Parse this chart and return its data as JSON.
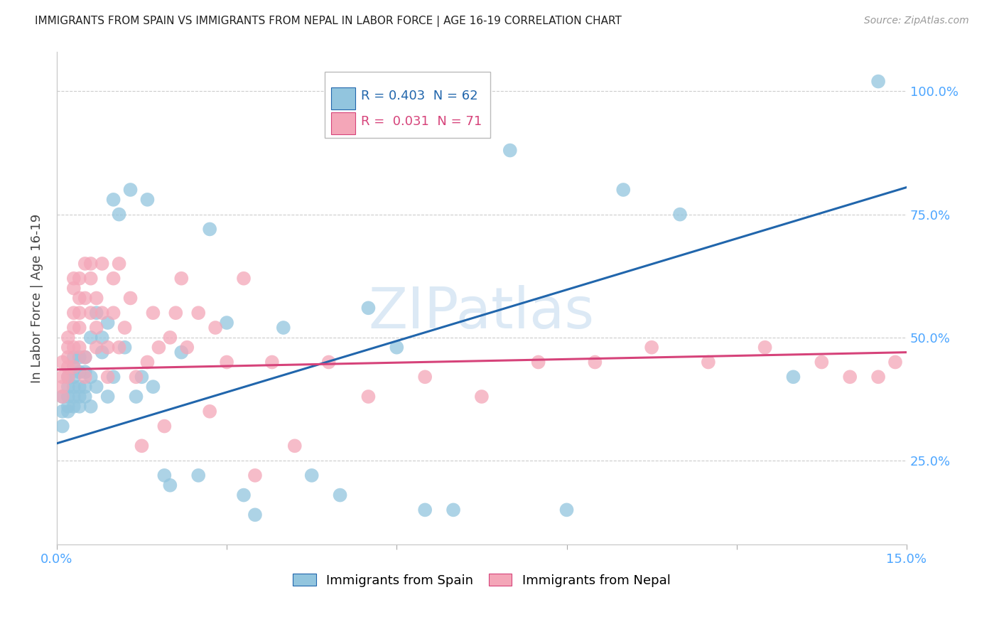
{
  "title": "IMMIGRANTS FROM SPAIN VS IMMIGRANTS FROM NEPAL IN LABOR FORCE | AGE 16-19 CORRELATION CHART",
  "source": "Source: ZipAtlas.com",
  "ylabel": "In Labor Force | Age 16-19",
  "x_min": 0.0,
  "x_max": 0.15,
  "y_min": 0.08,
  "y_max": 1.08,
  "y_ticks": [
    0.25,
    0.5,
    0.75,
    1.0
  ],
  "y_tick_labels": [
    "25.0%",
    "50.0%",
    "75.0%",
    "100.0%"
  ],
  "legend_spain_R": "0.403",
  "legend_spain_N": "62",
  "legend_nepal_R": "0.031",
  "legend_nepal_N": "71",
  "blue_color": "#92c5de",
  "blue_line_color": "#2166ac",
  "pink_color": "#f4a6b8",
  "pink_line_color": "#d6437a",
  "watermark_color": "#dce9f5",
  "grid_color": "#cccccc",
  "tick_color": "#4da6ff",
  "spain_x": [
    0.001,
    0.001,
    0.001,
    0.002,
    0.002,
    0.002,
    0.002,
    0.002,
    0.003,
    0.003,
    0.003,
    0.003,
    0.003,
    0.003,
    0.004,
    0.004,
    0.004,
    0.004,
    0.004,
    0.005,
    0.005,
    0.005,
    0.005,
    0.006,
    0.006,
    0.006,
    0.007,
    0.007,
    0.008,
    0.008,
    0.009,
    0.009,
    0.01,
    0.01,
    0.011,
    0.012,
    0.013,
    0.014,
    0.015,
    0.016,
    0.017,
    0.019,
    0.02,
    0.022,
    0.025,
    0.027,
    0.03,
    0.033,
    0.035,
    0.04,
    0.045,
    0.05,
    0.055,
    0.06,
    0.065,
    0.07,
    0.08,
    0.09,
    0.1,
    0.11,
    0.13,
    0.145
  ],
  "spain_y": [
    0.38,
    0.35,
    0.32,
    0.4,
    0.36,
    0.42,
    0.38,
    0.35,
    0.42,
    0.38,
    0.36,
    0.4,
    0.44,
    0.46,
    0.38,
    0.4,
    0.43,
    0.46,
    0.36,
    0.43,
    0.46,
    0.38,
    0.4,
    0.5,
    0.36,
    0.42,
    0.55,
    0.4,
    0.47,
    0.5,
    0.53,
    0.38,
    0.78,
    0.42,
    0.75,
    0.48,
    0.8,
    0.38,
    0.42,
    0.78,
    0.4,
    0.22,
    0.2,
    0.47,
    0.22,
    0.72,
    0.53,
    0.18,
    0.14,
    0.52,
    0.22,
    0.18,
    0.56,
    0.48,
    0.15,
    0.15,
    0.88,
    0.15,
    0.8,
    0.75,
    0.42,
    1.02
  ],
  "nepal_x": [
    0.001,
    0.001,
    0.001,
    0.001,
    0.002,
    0.002,
    0.002,
    0.002,
    0.002,
    0.003,
    0.003,
    0.003,
    0.003,
    0.003,
    0.003,
    0.004,
    0.004,
    0.004,
    0.004,
    0.004,
    0.005,
    0.005,
    0.005,
    0.005,
    0.006,
    0.006,
    0.006,
    0.007,
    0.007,
    0.007,
    0.008,
    0.008,
    0.009,
    0.009,
    0.01,
    0.01,
    0.011,
    0.011,
    0.012,
    0.013,
    0.014,
    0.015,
    0.016,
    0.017,
    0.018,
    0.019,
    0.02,
    0.021,
    0.022,
    0.023,
    0.025,
    0.027,
    0.028,
    0.03,
    0.033,
    0.035,
    0.038,
    0.042,
    0.048,
    0.055,
    0.065,
    0.075,
    0.085,
    0.095,
    0.105,
    0.115,
    0.125,
    0.135,
    0.14,
    0.145,
    0.148
  ],
  "nepal_y": [
    0.42,
    0.45,
    0.4,
    0.38,
    0.5,
    0.46,
    0.42,
    0.48,
    0.44,
    0.52,
    0.48,
    0.55,
    0.44,
    0.62,
    0.6,
    0.55,
    0.62,
    0.52,
    0.58,
    0.48,
    0.58,
    0.42,
    0.46,
    0.65,
    0.55,
    0.62,
    0.65,
    0.52,
    0.58,
    0.48,
    0.55,
    0.65,
    0.42,
    0.48,
    0.55,
    0.62,
    0.65,
    0.48,
    0.52,
    0.58,
    0.42,
    0.28,
    0.45,
    0.55,
    0.48,
    0.32,
    0.5,
    0.55,
    0.62,
    0.48,
    0.55,
    0.35,
    0.52,
    0.45,
    0.62,
    0.22,
    0.45,
    0.28,
    0.45,
    0.38,
    0.42,
    0.38,
    0.45,
    0.45,
    0.48,
    0.45,
    0.48,
    0.45,
    0.42,
    0.42,
    0.45
  ],
  "blue_line_x0": 0.0,
  "blue_line_y0": 0.285,
  "blue_line_x1": 0.15,
  "blue_line_y1": 0.805,
  "pink_line_x0": 0.0,
  "pink_line_y0": 0.435,
  "pink_line_x1": 0.15,
  "pink_line_y1": 0.47
}
